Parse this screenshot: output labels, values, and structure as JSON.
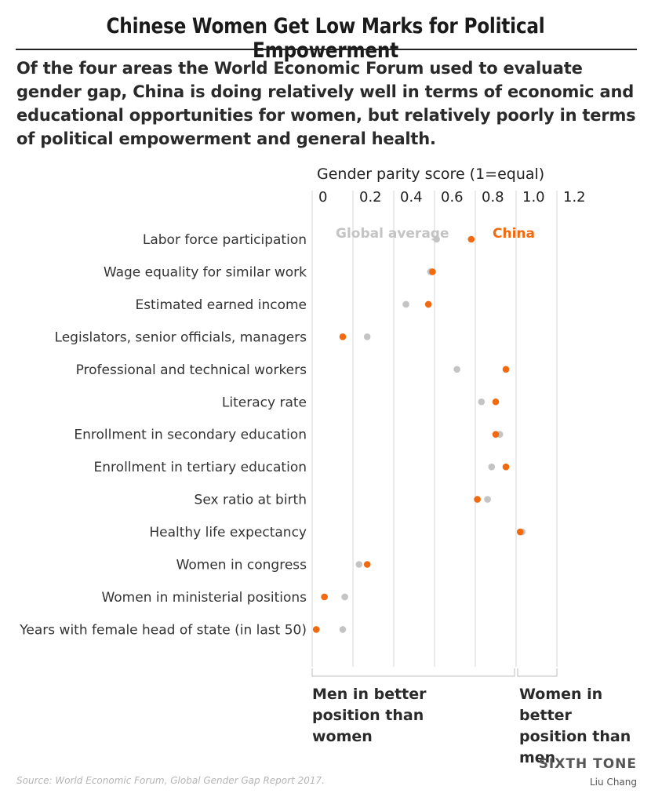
{
  "title": "Chinese Women Get Low Marks for Political Empowerment",
  "subtitle": "Of the four areas the World Economic Forum used to evaluate gender gap, China is doing relatively well in terms of economic and educational opportunities for women, but relatively poorly in terms of political empowerment and general health.",
  "source": "Source: World Economic Forum, Global Gender Gap Report 2017.",
  "brand": "SIXTH TONE",
  "author": "Liu Chang",
  "region_labels": {
    "men_better": "Men in better position than women",
    "women_better": "Women in better position than men"
  },
  "colors": {
    "china": "#f26a10",
    "global": "#c4c4c4",
    "grid": "#d6d6d6"
  },
  "chart_data": {
    "type": "scatter",
    "xlabel": "Gender parity score (1=equal)",
    "xlim": [
      0,
      1.2
    ],
    "xticks": [
      "0",
      "0.2",
      "0.4",
      "0.6",
      "0.8",
      "1.0",
      "1.2"
    ],
    "tick_values": [
      0,
      0.2,
      0.4,
      0.6,
      0.8,
      1.0,
      1.2
    ],
    "categories": [
      "Labor force participation",
      "Wage equality for similar work",
      "Estimated earned income",
      "Legislators, senior officials, managers",
      "Professional and technical workers",
      "Literacy rate",
      "Enrollment in secondary education",
      "Enrollment in tertiary education",
      "Sex ratio at birth",
      "Healthy life expectancy",
      "Women in congress",
      "Women in ministerial positions",
      "Years with female head of state (in last 50)"
    ],
    "series": [
      {
        "name": "Global average",
        "values": [
          0.61,
          0.58,
          0.46,
          0.27,
          0.71,
          0.83,
          0.92,
          0.88,
          0.86,
          1.03,
          0.23,
          0.16,
          0.15
        ]
      },
      {
        "name": "China",
        "values": [
          0.78,
          0.59,
          0.57,
          0.15,
          0.95,
          0.9,
          0.9,
          0.95,
          0.81,
          1.02,
          0.27,
          0.06,
          0.02
        ]
      }
    ],
    "annotations": [
      "Global average",
      "China"
    ]
  }
}
